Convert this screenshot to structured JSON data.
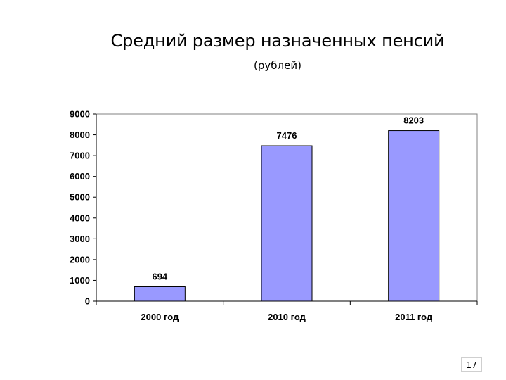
{
  "slide": {
    "title": "Средний размер назначенных пенсий",
    "subtitle": "(рублей)",
    "page_number": "17"
  },
  "colors": {
    "bar_fill": "#9999ff",
    "bar_stroke": "#000000",
    "plot_border": "#808080"
  },
  "chart_data": {
    "type": "bar",
    "categories": [
      "2000 год",
      "2010 год",
      "2011 год"
    ],
    "values": [
      694,
      7476,
      8203
    ],
    "data_labels": [
      "694",
      "7476",
      "8203"
    ],
    "y_ticks": [
      0,
      1000,
      2000,
      3000,
      4000,
      5000,
      6000,
      7000,
      8000,
      9000
    ],
    "ylim": [
      0,
      9000
    ],
    "grid": false,
    "legend": "none"
  }
}
